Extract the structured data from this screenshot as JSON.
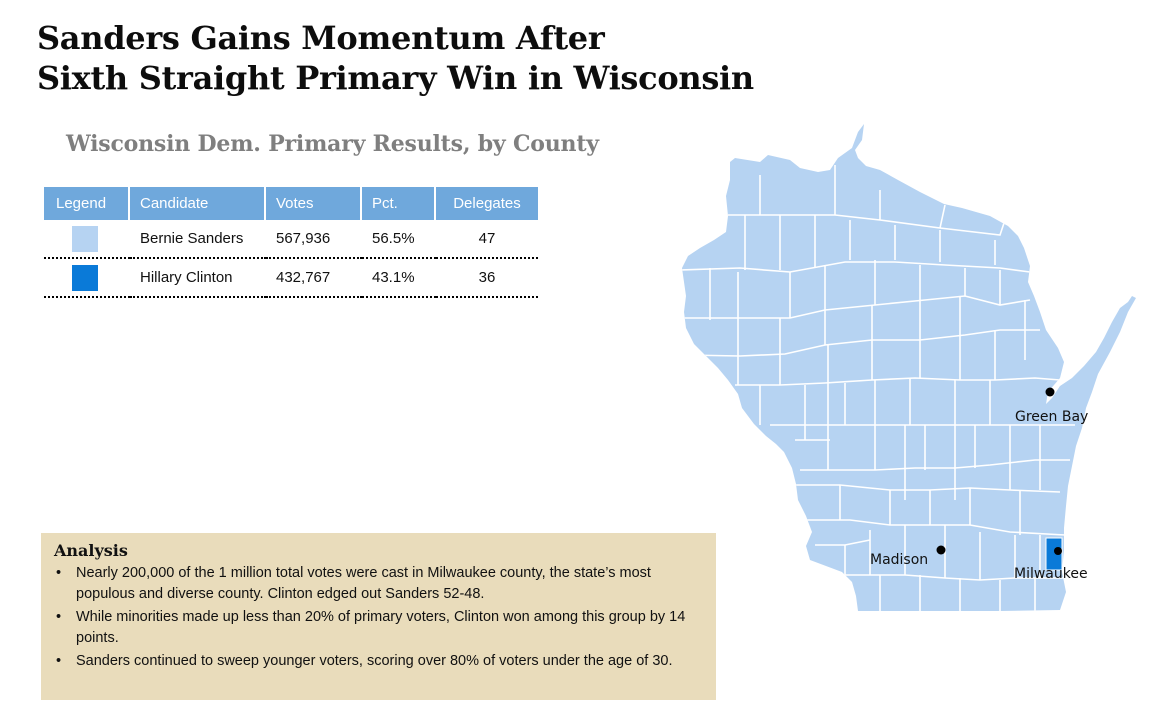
{
  "headline": {
    "line1": "Sanders Gains Momentum After",
    "line2": "Sixth Straight Primary Win in Wisconsin"
  },
  "subtitle": "Wisconsin Dem. Primary Results, by County",
  "table": {
    "headers": {
      "legend": "Legend",
      "candidate": "Candidate",
      "votes": "Votes",
      "pct": "Pct.",
      "delegates": "Delegates"
    },
    "rows": [
      {
        "candidate": "Bernie Sanders",
        "votes": "567,936",
        "pct": "56.5%",
        "delegates": "47",
        "color": "#b6d3f2"
      },
      {
        "candidate": "Hillary Clinton",
        "votes": "432,767",
        "pct": "43.1%",
        "delegates": "36",
        "color": "#0a7ad8"
      }
    ]
  },
  "analysis": {
    "title": "Analysis",
    "bullets": [
      "Nearly 200,000 of the 1 million total votes were cast in Milwaukee county, the state’s most populous and diverse county. Clinton edged out Sanders 52-48.",
      "While minorities made up less than 20% of primary voters, Clinton won among this group by 14 points.",
      "Sanders continued to sweep younger voters, scoring over 80% of voters under the age of 30."
    ]
  },
  "map": {
    "cities": [
      "Green Bay",
      "Madison",
      "Milwaukee"
    ],
    "colors": {
      "sanders": "#b6d3f2",
      "clinton": "#0a7ad8",
      "border": "#ffffff",
      "marker": "#000000"
    }
  }
}
